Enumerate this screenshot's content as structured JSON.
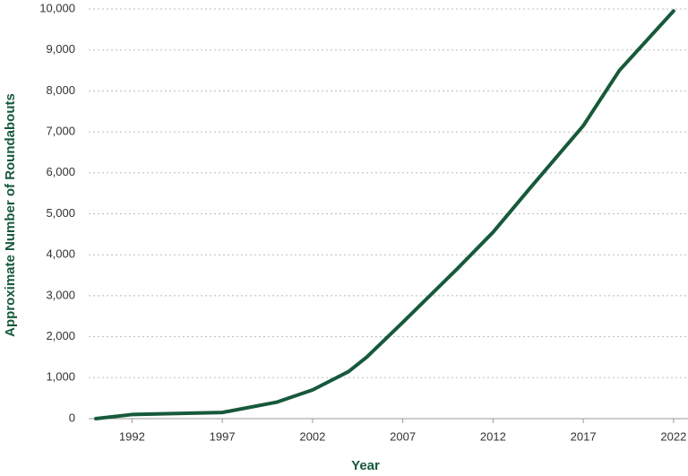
{
  "chart_data": {
    "type": "line",
    "x_label": "Year",
    "y_label": "Approximate Number of Roundabouts",
    "x": [
      1990,
      1992,
      1997,
      2000,
      2002,
      2004,
      2005,
      2007,
      2010,
      2012,
      2014,
      2017,
      2019,
      2022
    ],
    "values": [
      0,
      100,
      150,
      400,
      700,
      1150,
      1500,
      2350,
      3650,
      4550,
      5600,
      7150,
      8500,
      9950
    ],
    "color": "#17593b",
    "xlim": [
      1989.6,
      2022.8
    ],
    "xticks": [
      1992,
      1997,
      2002,
      2007,
      2012,
      2017,
      2022
    ],
    "ylim": [
      0,
      10000
    ],
    "yticks": [
      0,
      {
        "value": 1000,
        "label": "1,000"
      },
      {
        "value": 2000,
        "label": "2,000"
      },
      {
        "value": 3000,
        "label": "3,000"
      },
      {
        "value": 4000,
        "label": "4,000"
      },
      {
        "value": 5000,
        "label": "5,000"
      },
      {
        "value": 6000,
        "label": "6,000"
      },
      {
        "value": 7000,
        "label": "7,000"
      },
      {
        "value": 8000,
        "label": "8,000"
      },
      {
        "value": 9000,
        "label": "9,000"
      },
      {
        "value": 10000,
        "label": "10,000"
      }
    ],
    "grid": true
  }
}
